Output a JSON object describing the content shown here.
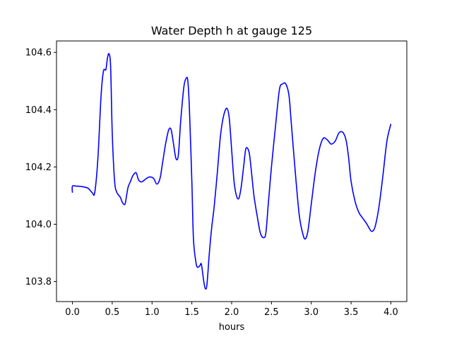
{
  "chart_data": {
    "type": "line",
    "title": "Water Depth h at gauge 125",
    "xlabel": "hours",
    "ylabel": "",
    "xlim": [
      -0.2,
      4.2
    ],
    "ylim": [
      103.73,
      104.64
    ],
    "x_ticks": [
      0.0,
      0.5,
      1.0,
      1.5,
      2.0,
      2.5,
      3.0,
      3.5,
      4.0
    ],
    "x_tick_labels": [
      "0.0",
      "0.5",
      "1.0",
      "1.5",
      "2.0",
      "2.5",
      "3.0",
      "3.5",
      "4.0"
    ],
    "y_ticks": [
      103.8,
      104.0,
      104.2,
      104.4,
      104.6
    ],
    "y_tick_labels": [
      "103.8",
      "104.0",
      "104.2",
      "104.4",
      "104.6"
    ],
    "grid": false,
    "legend": "none",
    "series": [
      {
        "color": "#0000ff",
        "x": [
          0.0,
          0.0,
          0.05,
          0.1,
          0.15,
          0.2,
          0.25,
          0.28,
          0.32,
          0.36,
          0.39,
          0.42,
          0.44,
          0.46,
          0.48,
          0.5,
          0.53,
          0.56,
          0.6,
          0.63,
          0.66,
          0.68,
          0.7,
          0.73,
          0.76,
          0.8,
          0.83,
          0.87,
          0.92,
          0.97,
          1.02,
          1.06,
          1.1,
          1.13,
          1.17,
          1.21,
          1.24,
          1.27,
          1.3,
          1.33,
          1.36,
          1.4,
          1.43,
          1.45,
          1.47,
          1.5,
          1.52,
          1.55,
          1.57,
          1.6,
          1.62,
          1.65,
          1.67,
          1.69,
          1.72,
          1.75,
          1.78,
          1.82,
          1.86,
          1.9,
          1.94,
          1.97,
          2.0,
          2.03,
          2.06,
          2.09,
          2.12,
          2.15,
          2.18,
          2.22,
          2.25,
          2.28,
          2.32,
          2.36,
          2.4,
          2.43,
          2.46,
          2.5,
          2.55,
          2.6,
          2.64,
          2.68,
          2.72,
          2.75,
          2.8,
          2.85,
          2.9,
          2.93,
          2.96,
          3.0,
          3.05,
          3.1,
          3.15,
          3.2,
          3.25,
          3.3,
          3.35,
          3.4,
          3.44,
          3.47,
          3.5,
          3.55,
          3.6,
          3.65,
          3.7,
          3.73,
          3.76,
          3.8,
          3.85,
          3.9,
          3.95,
          4.0
        ],
        "y": [
          104.11,
          104.133,
          104.133,
          104.132,
          104.13,
          104.125,
          104.11,
          104.11,
          104.23,
          104.45,
          104.535,
          104.54,
          104.58,
          104.595,
          104.55,
          104.32,
          104.15,
          104.11,
          104.095,
          104.075,
          104.07,
          104.1,
          104.13,
          104.15,
          104.17,
          104.18,
          104.155,
          104.148,
          104.158,
          104.165,
          104.16,
          104.14,
          104.16,
          104.21,
          104.28,
          104.33,
          104.33,
          104.28,
          104.23,
          104.24,
          104.36,
          104.48,
          104.51,
          104.5,
          104.4,
          104.15,
          103.95,
          103.87,
          103.85,
          103.855,
          103.86,
          103.8,
          103.775,
          103.79,
          103.9,
          103.99,
          104.06,
          104.18,
          104.31,
          104.38,
          104.405,
          104.37,
          104.26,
          104.15,
          104.1,
          104.09,
          104.13,
          104.2,
          104.265,
          104.25,
          104.18,
          104.1,
          104.03,
          103.97,
          103.953,
          103.97,
          104.07,
          104.2,
          104.34,
          104.47,
          104.49,
          104.49,
          104.45,
          104.35,
          104.18,
          104.03,
          103.96,
          103.95,
          103.98,
          104.07,
          104.18,
          104.26,
          104.3,
          104.295,
          104.28,
          104.29,
          104.32,
          104.32,
          104.29,
          104.23,
          104.15,
          104.08,
          104.04,
          104.02,
          104.0,
          103.985,
          103.975,
          103.99,
          104.06,
          104.17,
          104.29,
          104.35
        ]
      }
    ]
  }
}
